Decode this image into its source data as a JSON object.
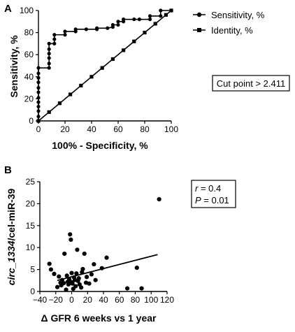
{
  "panels": {
    "a": "A",
    "b": "B"
  },
  "chart_data": [
    {
      "type": "line",
      "xlabel": "100% - Specificity, %",
      "ylabel": "Sensitivity, %",
      "xlim": [
        0,
        100
      ],
      "ylim": [
        0,
        100
      ],
      "xticks": [
        "0",
        "20",
        "40",
        "60",
        "80",
        "100"
      ],
      "yticks": [
        "0",
        "20",
        "40",
        "60",
        "80",
        "100"
      ],
      "legend_placement": "top-right",
      "series": [
        {
          "name": "Sensitivity, %",
          "marker": "circle",
          "points": [
            [
              0,
              0
            ],
            [
              0,
              4
            ],
            [
              0,
              9
            ],
            [
              0,
              13
            ],
            [
              0,
              17
            ],
            [
              0,
              21
            ],
            [
              0,
              26
            ],
            [
              0,
              30
            ],
            [
              0,
              35
            ],
            [
              0,
              39
            ],
            [
              0,
              43
            ],
            [
              0,
              48
            ],
            [
              8,
              48
            ],
            [
              8,
              52
            ],
            [
              8,
              57
            ],
            [
              8,
              61
            ],
            [
              8,
              65
            ],
            [
              8,
              70
            ],
            [
              12,
              70
            ],
            [
              12,
              74
            ],
            [
              12,
              78
            ],
            [
              20,
              78
            ],
            [
              20,
              81
            ],
            [
              28,
              81
            ],
            [
              28,
              83
            ],
            [
              36,
              83
            ],
            [
              44,
              83
            ],
            [
              44,
              84
            ],
            [
              52,
              84
            ],
            [
              56,
              85
            ],
            [
              56,
              87
            ],
            [
              60,
              87
            ],
            [
              60,
              90
            ],
            [
              64,
              90
            ],
            [
              64,
              92
            ],
            [
              72,
              92
            ],
            [
              76,
              92
            ],
            [
              84,
              92
            ],
            [
              84,
              95
            ],
            [
              92,
              95
            ],
            [
              92,
              100
            ],
            [
              100,
              100
            ]
          ]
        },
        {
          "name": "Identity, %",
          "marker": "square",
          "points": [
            [
              0,
              0
            ],
            [
              8,
              8
            ],
            [
              16,
              16
            ],
            [
              24,
              24
            ],
            [
              32,
              32
            ],
            [
              40,
              40
            ],
            [
              48,
              48
            ],
            [
              56,
              56
            ],
            [
              64,
              64
            ],
            [
              72,
              72
            ],
            [
              80,
              80
            ],
            [
              88,
              88
            ],
            [
              96,
              96
            ],
            [
              100,
              100
            ]
          ]
        }
      ],
      "annotation": "Cut point > 2.411"
    },
    {
      "type": "scatter",
      "xlabel": "Δ GFR 6 weeks vs 1 year",
      "ylabel_italic": "circ_1334",
      "ylabel_rest": "/cel-miR-39",
      "xlim": [
        -40,
        120
      ],
      "ylim": [
        0,
        25
      ],
      "xticks": [
        "−40",
        "−20",
        "0",
        "20",
        "40",
        "60",
        "80",
        "100",
        "120"
      ],
      "yticks": [
        "0",
        "5",
        "10",
        "15",
        "20",
        "25"
      ],
      "points": [
        [
          -28,
          6.3
        ],
        [
          -26,
          5.0
        ],
        [
          -22,
          4.0
        ],
        [
          -18,
          1.0
        ],
        [
          -16,
          3.4
        ],
        [
          -14,
          2.0
        ],
        [
          -13,
          1.4
        ],
        [
          -12,
          2.6
        ],
        [
          -10,
          1.9
        ],
        [
          -9,
          8.6
        ],
        [
          -7,
          0.4
        ],
        [
          -6,
          3.6
        ],
        [
          -5,
          2.2
        ],
        [
          -4,
          1.6
        ],
        [
          -3,
          2.8
        ],
        [
          -2,
          13.0
        ],
        [
          -1,
          11.8
        ],
        [
          0,
          4.2
        ],
        [
          0,
          2.1
        ],
        [
          1,
          1.8
        ],
        [
          2,
          0.6
        ],
        [
          3,
          3.2
        ],
        [
          4,
          2.6
        ],
        [
          5,
          1.2
        ],
        [
          6,
          4.1
        ],
        [
          7,
          9.5
        ],
        [
          8,
          2.4
        ],
        [
          9,
          3.0
        ],
        [
          10,
          1.6
        ],
        [
          12,
          0.9
        ],
        [
          13,
          4.4
        ],
        [
          14,
          5.1
        ],
        [
          16,
          8.6
        ],
        [
          18,
          2.0
        ],
        [
          19,
          3.3
        ],
        [
          22,
          1.8
        ],
        [
          25,
          3.9
        ],
        [
          28,
          6.2
        ],
        [
          30,
          2.6
        ],
        [
          38,
          5.3
        ],
        [
          44,
          7.7
        ],
        [
          70,
          0.7
        ],
        [
          82,
          5.4
        ],
        [
          88,
          0.7
        ],
        [
          110,
          21.0
        ]
      ],
      "trendline": [
        [
          -18,
          2.5
        ],
        [
          108,
          8.4
        ]
      ],
      "stats": {
        "r_var": "r",
        "r_val": " = 0.4",
        "p_var": "P",
        "p_val": " = 0.01"
      }
    }
  ]
}
